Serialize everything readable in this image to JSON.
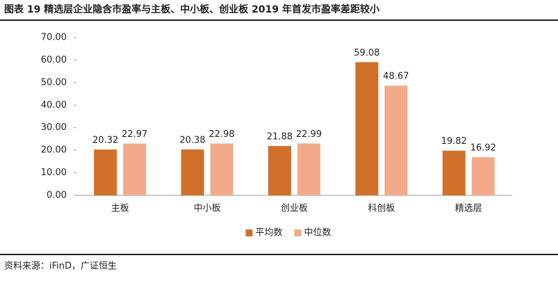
{
  "chart_data": {
    "type": "bar",
    "title": "图表 19 精选层企业隐含市盈率与主板、中小板、创业板 2019 年首发市盈率差距较小",
    "categories": [
      "主板",
      "中小板",
      "创业板",
      "科创板",
      "精选层"
    ],
    "series": [
      {
        "name": "平均数",
        "color": "#d0702a",
        "values": [
          20.32,
          20.38,
          21.88,
          59.08,
          19.82
        ]
      },
      {
        "name": "中位数",
        "color": "#f2aa8a",
        "values": [
          22.97,
          22.98,
          22.99,
          48.67,
          16.92
        ]
      }
    ],
    "ylim": [
      0,
      70
    ],
    "yticks": [
      {
        "value": 0,
        "label": "0.00"
      },
      {
        "value": 10,
        "label": "10.00"
      },
      {
        "value": 20,
        "label": "20.00"
      },
      {
        "value": 30,
        "label": "30.00"
      },
      {
        "value": 40,
        "label": "40.00"
      },
      {
        "value": 50,
        "label": "50.00"
      },
      {
        "value": 60,
        "label": "60.00"
      },
      {
        "value": 70,
        "label": "70.00"
      }
    ],
    "grid": false,
    "legend": "bottom",
    "source": "资料来源：iFinD，广证恒生"
  }
}
